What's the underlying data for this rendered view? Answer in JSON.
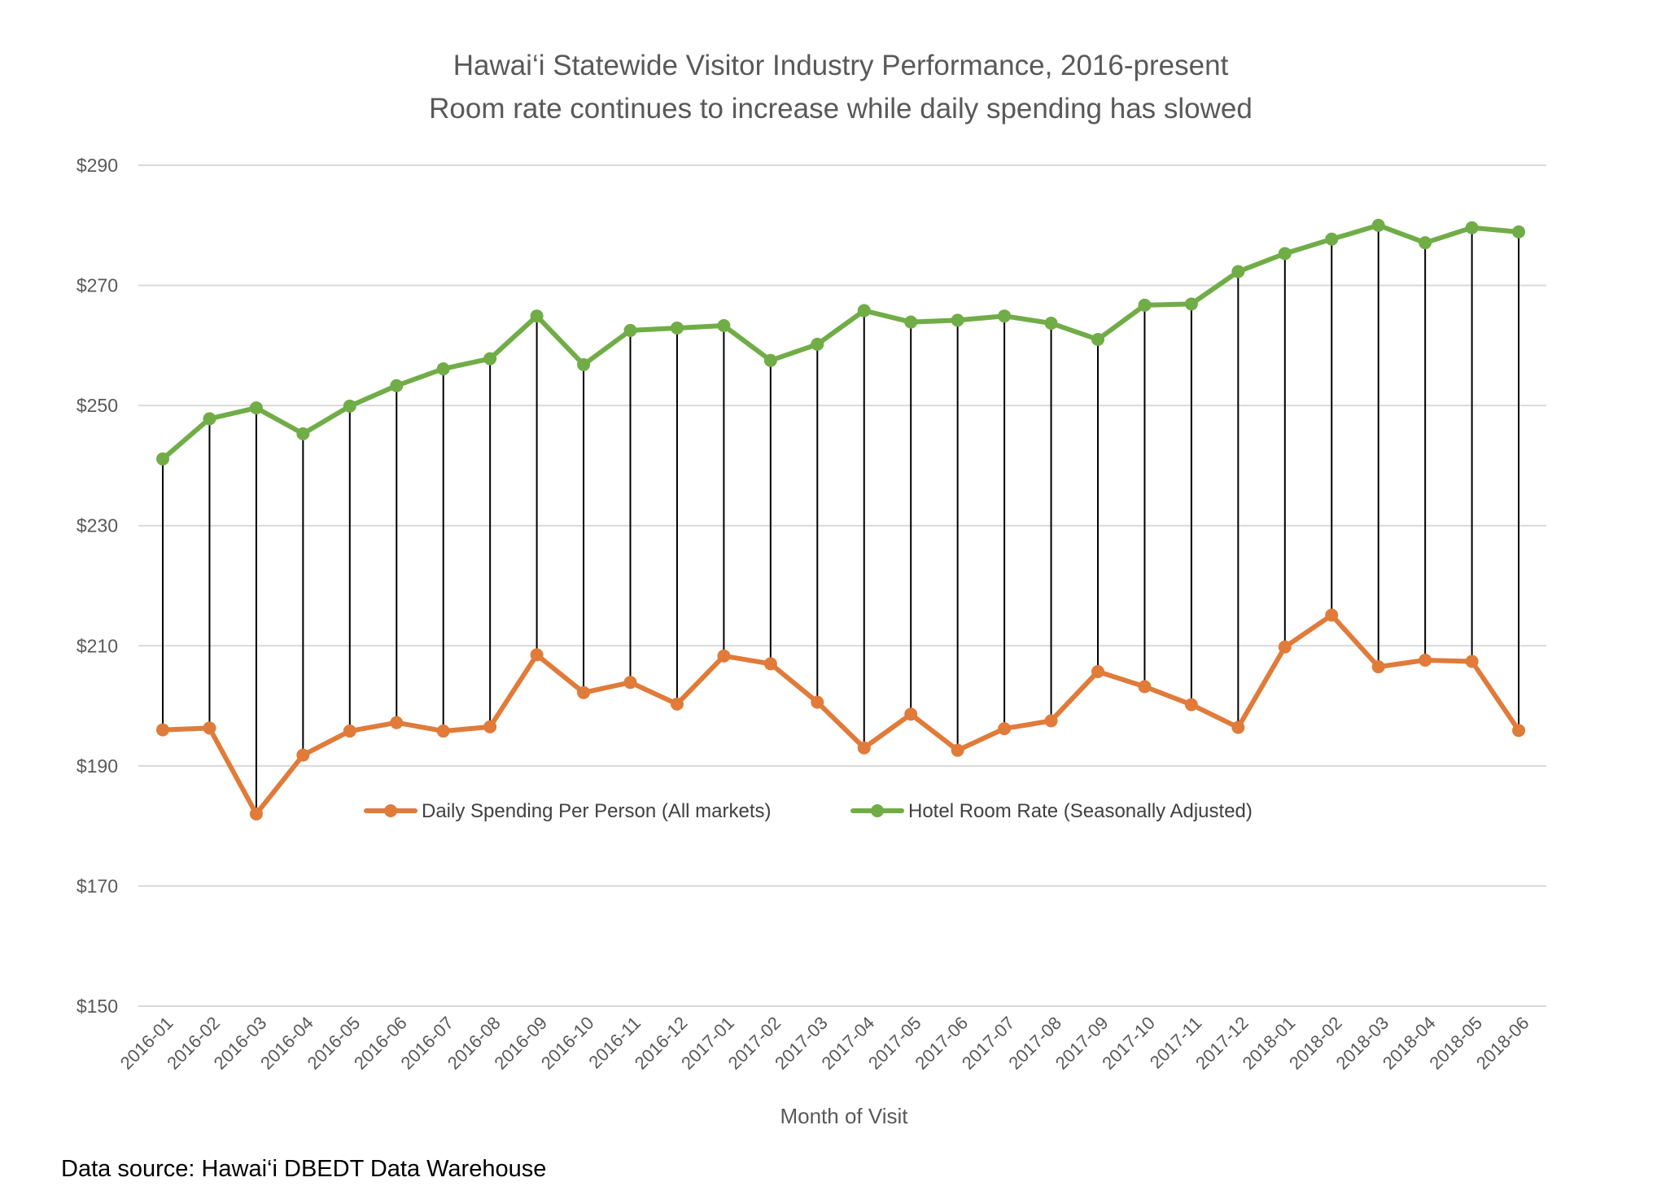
{
  "chart_data": {
    "type": "line",
    "title": "Hawai‘i Statewide Visitor Industry Performance, 2016-present",
    "subtitle": "Room rate continues to increase while daily spending has slowed",
    "xlabel": "Month of Visit",
    "ylabel": "",
    "ylim": [
      150,
      290
    ],
    "yticks": [
      "$150",
      "$170",
      "$190",
      "$210",
      "$230",
      "$250",
      "$270",
      "$290"
    ],
    "ytick_values": [
      150,
      170,
      190,
      210,
      230,
      250,
      270,
      290
    ],
    "grid": true,
    "legend_position": "inside-middle",
    "drop_lines": true,
    "categories": [
      "2016-01",
      "2016-02",
      "2016-03",
      "2016-04",
      "2016-05",
      "2016-06",
      "2016-07",
      "2016-08",
      "2016-09",
      "2016-10",
      "2016-11",
      "2016-12",
      "2017-01",
      "2017-02",
      "2017-03",
      "2017-04",
      "2017-05",
      "2017-06",
      "2017-07",
      "2017-08",
      "2017-09",
      "2017-10",
      "2017-11",
      "2017-12",
      "2018-01",
      "2018-02",
      "2018-03",
      "2018-04",
      "2018-05",
      "2018-06"
    ],
    "series": [
      {
        "name": "Daily Spending  Per Person (All markets)",
        "color": "#E07B39",
        "values": [
          196.0,
          196.3,
          182.0,
          191.8,
          195.8,
          197.2,
          195.8,
          196.5,
          208.5,
          202.2,
          203.9,
          200.3,
          208.3,
          207.0,
          200.6,
          193.0,
          198.6,
          192.6,
          196.2,
          197.5,
          205.7,
          203.2,
          200.2,
          196.4,
          209.8,
          215.1,
          206.5,
          207.6,
          207.4,
          195.9
        ]
      },
      {
        "name": "Hotel Room Rate (Seasonally Adjusted)",
        "color": "#70AD47",
        "values": [
          241.1,
          247.8,
          249.6,
          245.3,
          249.9,
          253.3,
          256.1,
          257.8,
          264.9,
          256.8,
          262.5,
          262.9,
          263.3,
          257.5,
          260.2,
          265.8,
          263.9,
          264.2,
          264.9,
          263.7,
          261.0,
          266.7,
          266.9,
          272.3,
          275.3,
          277.7,
          280.0,
          277.1,
          279.6,
          278.9
        ]
      }
    ]
  },
  "source_note": "Data source: Hawai‘i DBEDT Data Warehouse"
}
